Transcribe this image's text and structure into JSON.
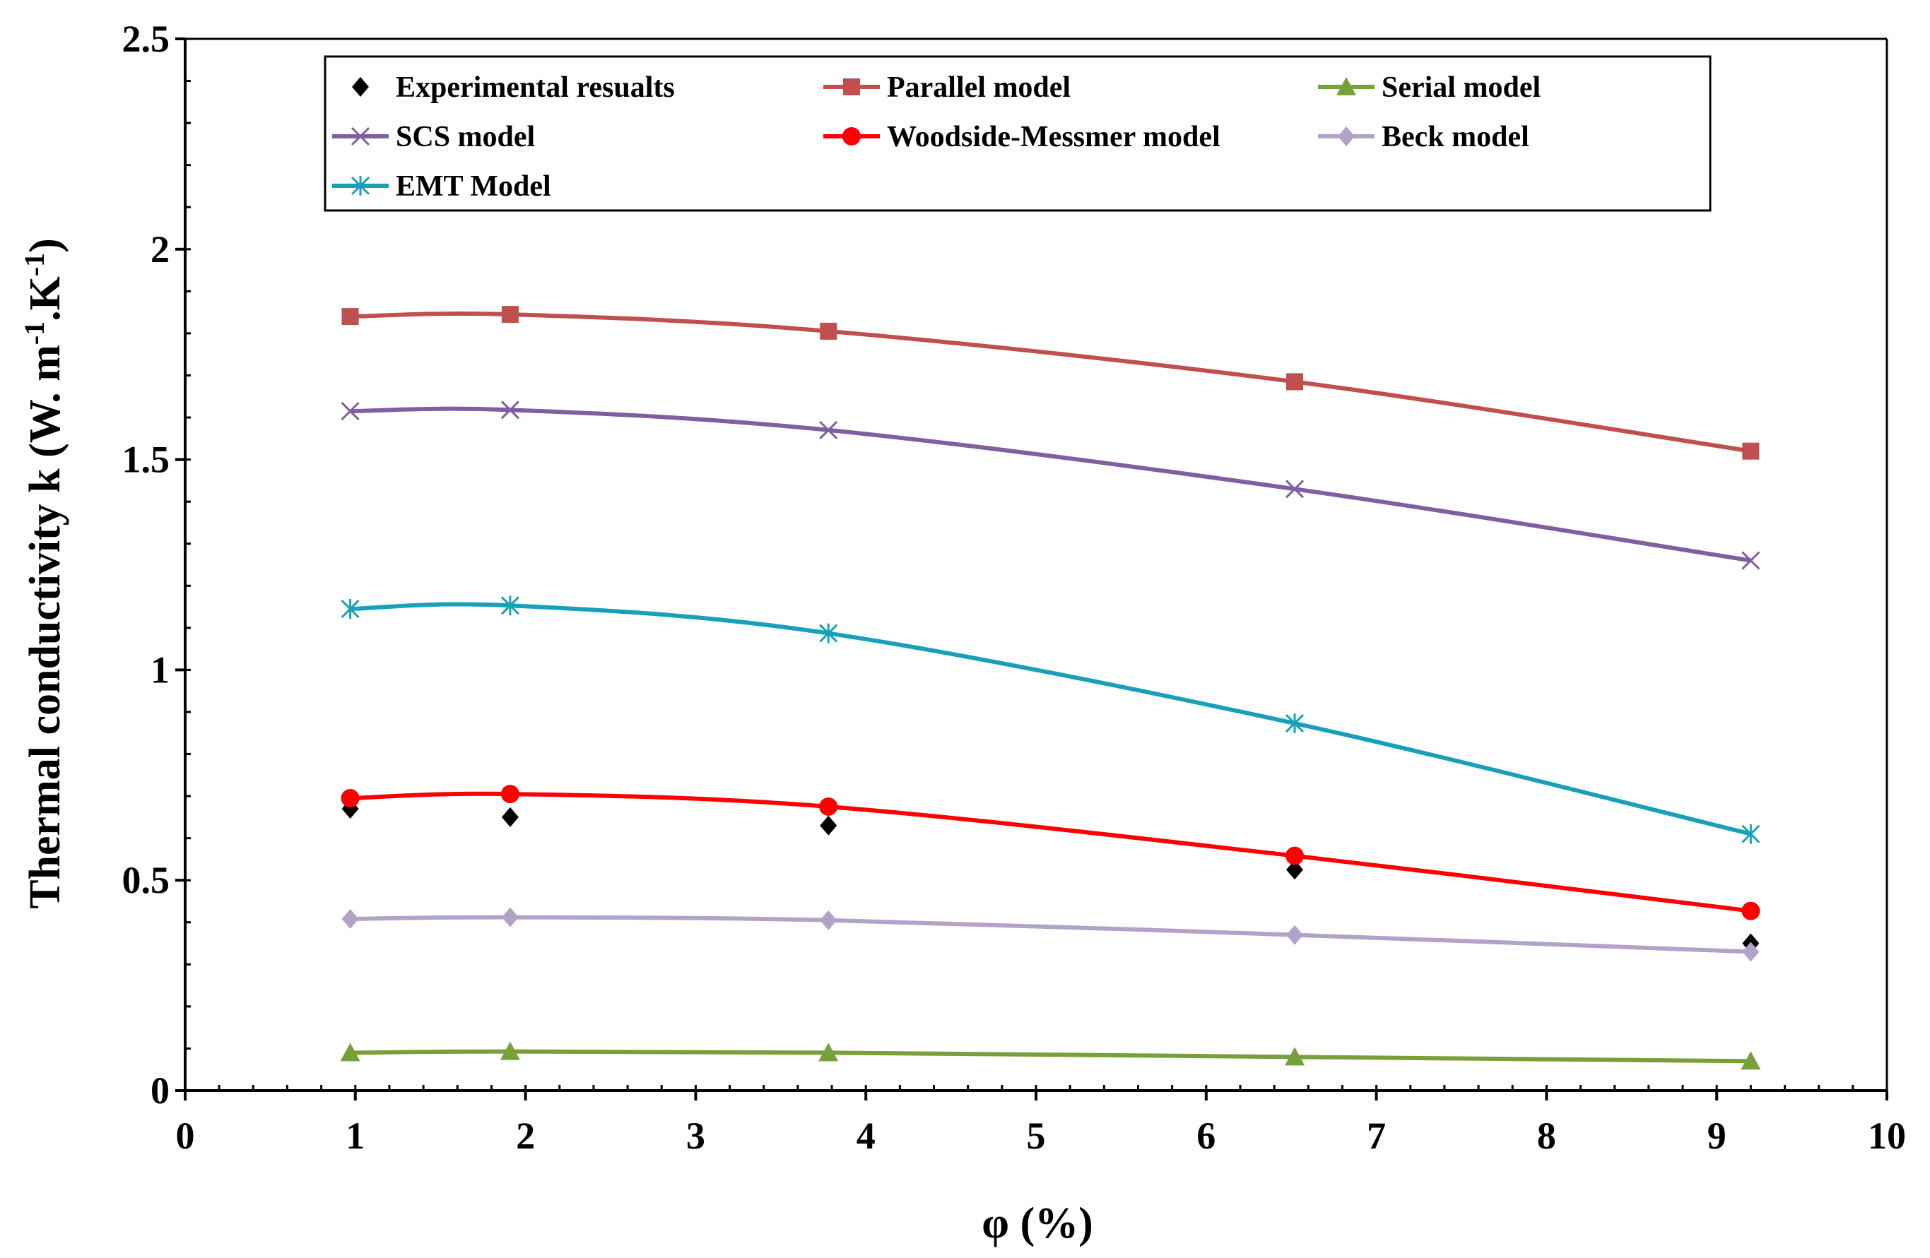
{
  "chart_data": {
    "type": "line",
    "title": "",
    "xlabel": "φ (%)",
    "ylabel": "Thermal conductivity k (W. m",
    "ylabel_sup1": "-1",
    "ylabel_mid": ".K",
    "ylabel_sup2": "-1",
    "ylabel_end": ")",
    "xlim": [
      0,
      10
    ],
    "ylim": [
      0,
      2.5
    ],
    "x_ticks": [
      "0",
      "1",
      "2",
      "3",
      "4",
      "5",
      "6",
      "7",
      "8",
      "9",
      "10"
    ],
    "y_ticks": [
      "0",
      "0.5",
      "1",
      "1.5",
      "2",
      "2.5"
    ],
    "grid": false,
    "legend_position": "top",
    "x": [
      0.97,
      1.91,
      3.78,
      6.52,
      9.2
    ],
    "series": [
      {
        "name": "Experimental resualts",
        "marker": "diamond",
        "color": "#000000",
        "line": false,
        "values": [
          0.67,
          0.65,
          0.63,
          0.525,
          0.35
        ]
      },
      {
        "name": "Parallel model",
        "marker": "square",
        "color": "#c0504d",
        "line": true,
        "values": [
          1.84,
          1.845,
          1.805,
          1.685,
          1.52
        ]
      },
      {
        "name": "Serial model",
        "marker": "triangle",
        "color": "#77a03a",
        "line": true,
        "values": [
          0.09,
          0.093,
          0.09,
          0.08,
          0.07
        ]
      },
      {
        "name": "SCS model",
        "marker": "x",
        "color": "#7f5fa0",
        "line": true,
        "values": [
          1.615,
          1.618,
          1.57,
          1.43,
          1.26
        ]
      },
      {
        "name": "Woodside-Messmer model",
        "marker": "circle",
        "color": "#ff0000",
        "line": true,
        "values": [
          0.695,
          0.705,
          0.675,
          0.558,
          0.427
        ]
      },
      {
        "name": "Beck model",
        "marker": "diamond",
        "color": "#b3a2c7",
        "line": true,
        "values": [
          0.408,
          0.412,
          0.405,
          0.37,
          0.33
        ]
      },
      {
        "name": "EMT Model",
        "marker": "star",
        "color": "#17a0b8",
        "line": true,
        "values": [
          1.145,
          1.153,
          1.087,
          0.873,
          0.61
        ]
      }
    ]
  }
}
